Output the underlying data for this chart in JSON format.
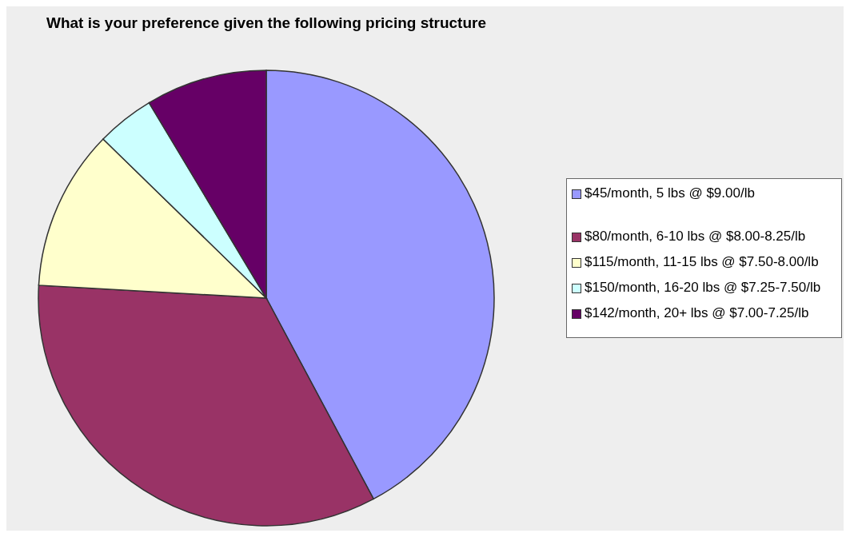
{
  "chart_data": {
    "type": "pie",
    "title": "What is your preference given the following pricing structure",
    "categories": [
      "$45/month, 5 lbs @ $9.00/lb",
      "$80/month, 6-10 lbs  @ $8.00-8.25/lb",
      "$115/month, 11-15 lbs @ $7.50-8.00/lb",
      "$150/month, 16-20 lbs @ $7.25-7.50/lb",
      "$142/month, 20+ lbs @ $7.00-7.25/lb"
    ],
    "values": [
      42.2,
      33.7,
      11.4,
      4.1,
      8.6
    ],
    "colors": [
      "#9999ff",
      "#993366",
      "#ffffcc",
      "#ccffff",
      "#660066"
    ],
    "legend": "right"
  }
}
